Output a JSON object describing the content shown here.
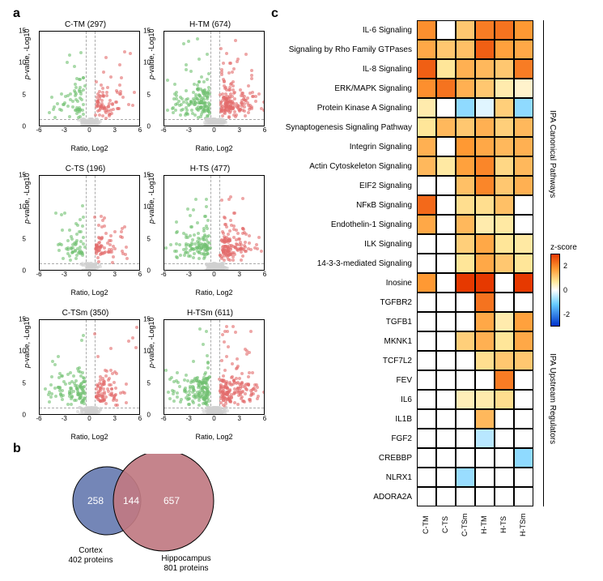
{
  "panels": {
    "a": "a",
    "b": "b",
    "c": "c"
  },
  "volcano": {
    "xlabel": "Ratio, Log2",
    "ylabel_italic": "p",
    "ylabel_rest": "-value, -Log10",
    "xlim": [
      -6,
      6
    ],
    "ylim": [
      0,
      15
    ],
    "xticks": [
      -6,
      -3,
      0,
      3,
      6
    ],
    "yticks": [
      0,
      5,
      10,
      15
    ],
    "threshold_y": 1.3,
    "threshold_x_neg": -0.5,
    "threshold_x_pos": 0.5,
    "color_down": "#6fbf6f",
    "color_up": "#e26a6a",
    "color_ns": "#d0d0d0",
    "color_center": "#555555",
    "plots": [
      {
        "id": "C-TM",
        "n": 297,
        "title": "C-TM (297)",
        "density": 300,
        "spread": 1.0,
        "ymax": 12
      },
      {
        "id": "H-TM",
        "n": 674,
        "title": "H-TM (674)",
        "density": 600,
        "spread": 1.3,
        "ymax": 14
      },
      {
        "id": "C-TS",
        "n": 196,
        "title": "C-TS (196)",
        "density": 220,
        "spread": 0.9,
        "ymax": 10
      },
      {
        "id": "H-TS",
        "n": 477,
        "title": "H-TS (477)",
        "density": 480,
        "spread": 1.2,
        "ymax": 12
      },
      {
        "id": "C-TSm",
        "n": 350,
        "title": "C-TSm (350)",
        "density": 350,
        "spread": 1.05,
        "ymax": 14
      },
      {
        "id": "H-TSm",
        "n": 611,
        "title": "H-TSm (611)",
        "density": 600,
        "spread": 1.3,
        "ymax": 14
      }
    ]
  },
  "venn": {
    "left": {
      "label": "Cortex",
      "sub": "402 proteins",
      "unique": 258,
      "color": "#6d7fb3"
    },
    "right": {
      "label": "Hippocampus",
      "sub": "801 proteins",
      "unique": 657,
      "color": "#c07a82"
    },
    "overlap": 144,
    "text_color": "#ffffff"
  },
  "heatmap": {
    "columns": [
      "C-TM",
      "C-TS",
      "C-TSm",
      "H-TM",
      "H-TS",
      "H-TSm"
    ],
    "groups": [
      {
        "label": "IPA Canonical Pathways",
        "start": 0,
        "end": 12
      },
      {
        "label": "IPA Upstream Regulators",
        "start": 13,
        "end": 24
      }
    ],
    "rows": [
      {
        "label": "IL-6 Signaling",
        "z": [
          2.1,
          0.0,
          1.4,
          2.3,
          2.4,
          2.0
        ]
      },
      {
        "label": "Signaling by Rho Family GTPases",
        "z": [
          1.8,
          1.4,
          1.5,
          2.6,
          1.9,
          1.8
        ]
      },
      {
        "label": "IL-8 Signaling",
        "z": [
          2.6,
          1.0,
          1.7,
          1.6,
          1.4,
          2.3
        ]
      },
      {
        "label": "ERK/MAPK Signaling",
        "z": [
          2.1,
          2.4,
          1.7,
          1.4,
          0.8,
          0.5
        ]
      },
      {
        "label": "Protein Kinase A Signaling",
        "z": [
          0.8,
          0.0,
          -1.1,
          -0.3,
          1.3,
          -1.1
        ]
      },
      {
        "label": "Synaptogenesis Signaling Pathway",
        "z": [
          1.0,
          1.6,
          1.4,
          1.7,
          1.3,
          1.6
        ]
      },
      {
        "label": "Integrin Signaling",
        "z": [
          1.7,
          0.0,
          2.0,
          1.8,
          1.6,
          1.7
        ]
      },
      {
        "label": "Actin Cytoskeleton Signaling",
        "z": [
          1.6,
          0.9,
          1.9,
          2.2,
          1.2,
          1.6
        ]
      },
      {
        "label": "EIF2 Signaling",
        "z": [
          0.0,
          0.0,
          1.5,
          2.2,
          1.4,
          1.7
        ]
      },
      {
        "label": "NFκB Signaling",
        "z": [
          2.5,
          0.0,
          1.1,
          1.1,
          1.5,
          0.0
        ]
      },
      {
        "label": "Endothelin-1 Signaling",
        "z": [
          1.8,
          0.0,
          1.6,
          0.8,
          0.9,
          0.0
        ]
      },
      {
        "label": "ILK Signaling",
        "z": [
          0.0,
          0.0,
          1.3,
          1.8,
          1.0,
          0.9
        ]
      },
      {
        "label": "14-3-3-mediated Signaling",
        "z": [
          0.0,
          0.0,
          1.0,
          1.8,
          1.4,
          1.0
        ]
      },
      {
        "label": "Inosine",
        "z": [
          2.0,
          0.0,
          3.0,
          3.0,
          0.0,
          3.0
        ]
      },
      {
        "label": "TGFBR2",
        "z": [
          0.0,
          0.0,
          0.0,
          2.4,
          0.0,
          0.0
        ]
      },
      {
        "label": "TGFB1",
        "z": [
          0.0,
          0.0,
          0.0,
          1.8,
          0.8,
          1.9
        ]
      },
      {
        "label": "MKNK1",
        "z": [
          0.0,
          0.0,
          1.3,
          1.7,
          1.0,
          1.8
        ]
      },
      {
        "label": "TCF7L2",
        "z": [
          0.0,
          0.0,
          0.0,
          1.1,
          1.4,
          1.4
        ]
      },
      {
        "label": "FEV",
        "z": [
          0.0,
          0.0,
          0.0,
          0.0,
          2.3,
          0.0
        ]
      },
      {
        "label": "IL6",
        "z": [
          0.0,
          0.0,
          0.7,
          0.8,
          1.1,
          0.0
        ]
      },
      {
        "label": "IL1B",
        "z": [
          0.0,
          0.0,
          0.0,
          1.6,
          0.0,
          0.0
        ]
      },
      {
        "label": "FGF2",
        "z": [
          0.0,
          0.0,
          0.0,
          -0.7,
          0.0,
          0.0
        ]
      },
      {
        "label": "CREBBP",
        "z": [
          0.0,
          0.0,
          0.0,
          0.0,
          0.0,
          -1.1
        ]
      },
      {
        "label": "NLRX1",
        "z": [
          0.0,
          0.0,
          -1.0,
          0.0,
          0.0,
          0.0
        ]
      },
      {
        "label": "ADORA2A",
        "z": [
          0.0,
          0.0,
          0.0,
          0.0,
          0.0,
          0.0
        ]
      }
    ],
    "zscale": {
      "label": "z-score",
      "min": -3,
      "max": 3,
      "ticks": [
        2,
        0,
        -2
      ],
      "colors": {
        "neg3": "#0033cc",
        "neg1": "#66ccff",
        "zero": "#ffffff",
        "pos1": "#ffe699",
        "pos2": "#ff9933",
        "pos3": "#e63900"
      }
    }
  }
}
